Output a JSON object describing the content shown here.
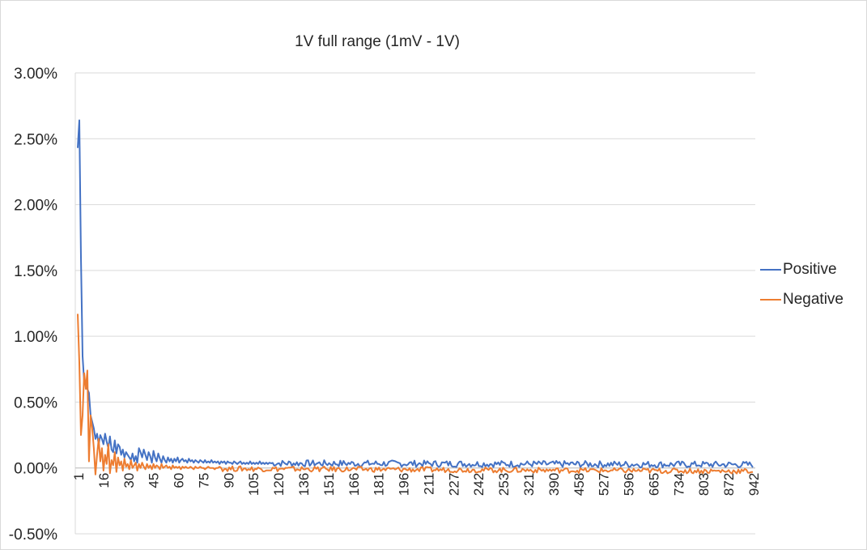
{
  "chart_data": {
    "type": "line",
    "title": "1V full range (1mV - 1V)",
    "xlabel": "",
    "ylabel": "",
    "ylim": [
      -0.005,
      0.03
    ],
    "y_ticks": [
      "3.00%",
      "2.50%",
      "2.00%",
      "1.50%",
      "1.00%",
      "0.50%",
      "0.00%",
      "-0.50%"
    ],
    "y_tick_values": [
      0.03,
      0.025,
      0.02,
      0.015,
      0.01,
      0.005,
      0.0,
      -0.005
    ],
    "x_tick_labels": [
      "1",
      "16",
      "30",
      "45",
      "60",
      "75",
      "90",
      "105",
      "120",
      "136",
      "151",
      "166",
      "181",
      "196",
      "211",
      "227",
      "242",
      "253",
      "321",
      "390",
      "458",
      "527",
      "596",
      "665",
      "734",
      "803",
      "872",
      "942"
    ],
    "point_count": 420,
    "tick_step": 15,
    "grid": true,
    "legend_position": "right",
    "series": [
      {
        "name": "Positive",
        "color": "#4472c4",
        "values": [
          0.0243,
          0.0264,
          0.016,
          0.0085,
          0.0065,
          0.0063,
          0.006,
          0.0057,
          0.004,
          0.0035,
          0.003,
          0.0022,
          0.0026,
          0.0018,
          0.0025,
          0.0022,
          0.0018,
          0.0026,
          0.002,
          0.0015,
          0.0024,
          0.0014,
          0.0012,
          0.0021,
          0.0011,
          0.0018,
          0.0016,
          0.001,
          0.0014,
          0.0008,
          0.0012,
          0.001,
          0.0008,
          0.0006,
          0.0011,
          0.0005,
          0.0009,
          0.0004,
          0.0015,
          0.0012,
          0.0008,
          0.0014,
          0.001,
          0.0006,
          0.0012,
          0.0009,
          0.0004,
          0.0013,
          0.0008,
          0.0005,
          0.0011,
          0.0007,
          0.0004,
          0.0009,
          0.0006,
          0.0004,
          0.0008,
          0.0005,
          0.0007,
          0.0004,
          0.0007,
          0.0005,
          0.0008,
          0.0004,
          0.0006,
          0.0007,
          0.0005,
          0.0006,
          0.0004,
          0.0007,
          0.0005,
          0.0006,
          0.0004,
          0.0006,
          0.0005,
          0.0004,
          0.0006,
          0.0005,
          0.0004,
          0.0006,
          0.0004,
          0.0005,
          0.0004,
          0.0006,
          0.0004,
          0.0005,
          0.0004,
          0.0005,
          0.0003,
          0.0005,
          0.0004,
          0.0005,
          0.0003,
          0.0005,
          0.0004,
          0.0004,
          0.0003,
          0.0005,
          0.0004,
          0.0003,
          0.0004,
          0.0005,
          0.0003,
          0.0004,
          0.0003,
          0.0004,
          0.0003,
          0.0005,
          0.0003,
          0.0004,
          0.0003,
          0.0004,
          0.0003,
          0.0005,
          0.0003,
          0.0004,
          0.0003,
          0.0004,
          0.0003,
          0.0004
        ],
        "baseline_tail": 0.0003
      },
      {
        "name": "Negative",
        "color": "#ed7d31",
        "values": [
          0.0117,
          0.008,
          0.0025,
          0.004,
          0.0072,
          0.006,
          0.0074,
          0.0005,
          0.004,
          0.003,
          0.0015,
          -0.0005,
          0.001,
          0.0022,
          0.0005,
          0.0015,
          -0.0002,
          0.001,
          0.0003,
          0.0018,
          -0.0004,
          0.0006,
          0.0002,
          0.0012,
          -0.0003,
          0.0008,
          0.0002,
          0.0005,
          -0.0002,
          0.0007,
          0.0001,
          0.0003,
          -0.0001,
          0.0006,
          0.0,
          0.0002,
          0.0004,
          -0.0002,
          0.0003,
          0.0,
          0.0004,
          0.0001,
          -0.0001,
          0.0003,
          0.0,
          0.0002,
          -0.0001,
          0.0003,
          0.0,
          0.0002,
          0.0001,
          -0.0001,
          0.0003,
          0.0,
          0.0001,
          0.0002,
          0.0,
          0.0001,
          -0.0001,
          0.0002,
          0.0,
          0.0001,
          0.0,
          0.0001,
          -0.0001,
          0.0001,
          0.0,
          0.0001,
          0.0,
          0.0,
          0.0001,
          0.0,
          -0.0001,
          0.0001,
          0.0,
          0.0,
          0.0001,
          0.0,
          0.0,
          -0.0001,
          0.0,
          0.0001,
          0.0,
          0.0,
          0.0,
          -0.0001,
          0.0,
          0.0,
          0.0001,
          0.0
        ],
        "baseline_tail": -0.0003
      }
    ]
  }
}
